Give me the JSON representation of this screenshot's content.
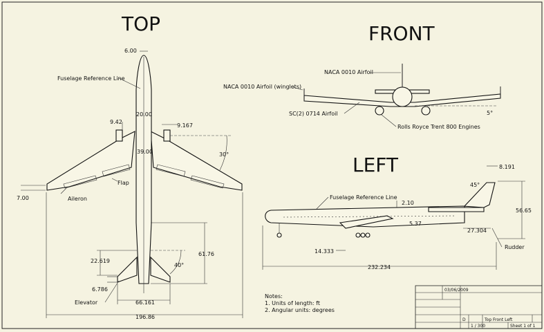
{
  "views": {
    "top": "TOP",
    "front": "FRONT",
    "left": "LEFT"
  },
  "top_view": {
    "nose_width": "6.00",
    "fuselage_ref": "Fuselage Reference Line",
    "fuselage_width": "20.00",
    "engine_offset_a": "9.42",
    "engine_offset_b": "9.167",
    "sweep_angle": "30°",
    "wing_root_chord": "39.00",
    "flap": "Flap",
    "tip_offset": "7.00",
    "aileron": "Aileron",
    "tail_x": "22.619",
    "tail_length": "61.76",
    "tail_sweep": "40°",
    "tail_chord": "6.786",
    "elevator": "Elevator",
    "tail_span": "66.161",
    "wingspan": "196.86"
  },
  "front_view": {
    "tail_airfoil": "NACA 0010 Airfoil",
    "winglet_airfoil": "NACA 0010 Airfoil (winglets)",
    "wing_airfoil": "SC(2) 0714 Airfoil",
    "dihedral": "5°",
    "engines": "Rolls Royce Trent 800 Engines"
  },
  "left_view": {
    "fin_top": "8.191",
    "fuselage_ref": "Fuselage Reference Line",
    "fin_sweep": "45°",
    "wing_height": "2.10",
    "height": "56.65",
    "wing_offset": "5.37",
    "tail_offset": "27.304",
    "gear_pos": "14.333",
    "rudder": "Rudder",
    "length": "232.234"
  },
  "notes": {
    "heading": "Notes:",
    "line1": "1. Units of length: ft",
    "line2": "2. Angular units: degrees"
  },
  "title_block": {
    "date": "03/06/2009",
    "title": "Top Front Left",
    "size": "D",
    "scale": "1 / 300",
    "sheet": "Sheet 1 of 1"
  }
}
